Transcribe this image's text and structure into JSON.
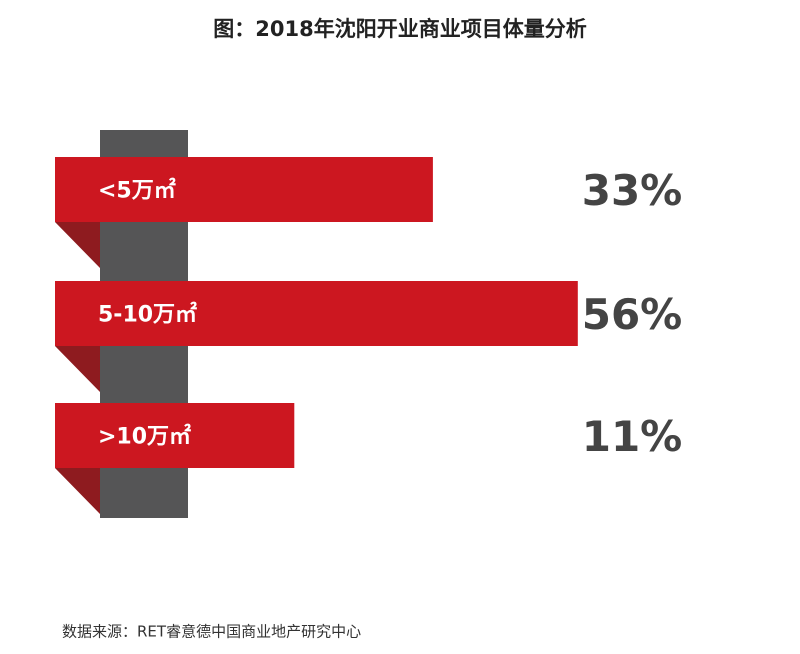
{
  "chart_data": {
    "type": "bar",
    "title": "图：2018年沈阳开业商业项目体量分析",
    "categories": [
      "<5万㎡",
      "5-10万㎡",
      ">10万㎡"
    ],
    "values": [
      33,
      56,
      11
    ],
    "value_labels": [
      "33%",
      "56%",
      "11%"
    ],
    "color": "#cc1720",
    "source": "数据来源：RET睿意德中国商业地产研究中心"
  }
}
